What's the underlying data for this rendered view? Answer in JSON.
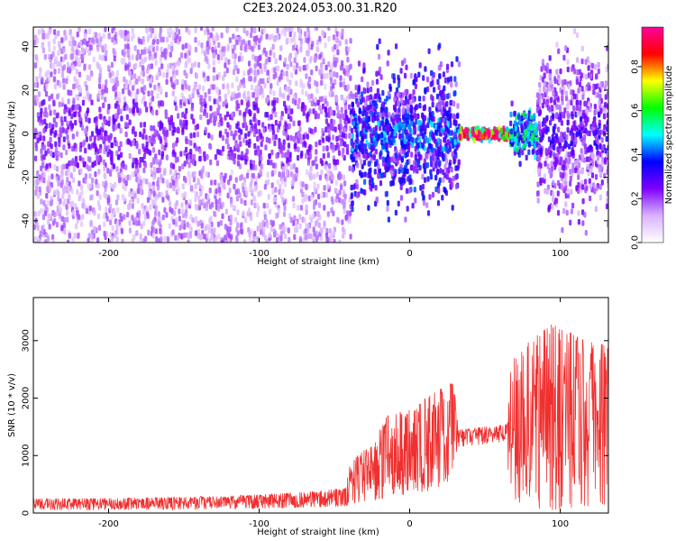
{
  "title": "C2E3.2024.053.00.31.R20",
  "chart_data": [
    {
      "type": "heatmap",
      "xlabel": "Height of straight line (km)",
      "ylabel": "Frequency (Hz)",
      "xlim": [
        -250,
        132
      ],
      "ylim": [
        -50,
        49
      ],
      "xticks": [
        -200,
        -100,
        0,
        100
      ],
      "yticks": [
        -40,
        -20,
        0,
        20,
        40
      ],
      "colorbar": {
        "label": "Normalized spectral amplitude",
        "range": [
          0,
          0.98
        ],
        "ticks": [
          "0.0",
          "0.2",
          "0.4",
          "0.6",
          "0.8"
        ],
        "colormap": [
          "#ffffff",
          "#d9b3ff",
          "#7f00ff",
          "#0000ff",
          "#00ffff",
          "#00ff00",
          "#ffff00",
          "#ff0000",
          "#ff00a0"
        ]
      },
      "regions": [
        {
          "x": [
            -250,
            -40
          ],
          "freq_spread_hz": 50,
          "amplitude": 0.15
        },
        {
          "x": [
            -40,
            32
          ],
          "freq_spread_hz": 25,
          "amplitude": 0.3
        },
        {
          "x": [
            32,
            66
          ],
          "freq_spread_hz": 2,
          "amplitude": 0.9
        },
        {
          "x": [
            66,
            84
          ],
          "freq_spread_hz": 8,
          "amplitude": 0.45
        },
        {
          "x": [
            84,
            132
          ],
          "freq_spread_hz": 30,
          "amplitude": 0.2
        }
      ]
    },
    {
      "type": "line",
      "xlabel": "Height of straight line (km)",
      "ylabel": "SNR (10 * v/v)",
      "xlim": [
        -250,
        132
      ],
      "ylim": [
        0,
        3750
      ],
      "xticks": [
        -200,
        -100,
        0,
        100
      ],
      "yticks": [
        0,
        1000,
        2000,
        3000
      ],
      "series_color": "#f03030",
      "envelope": [
        {
          "x": -250,
          "lo": 50,
          "hi": 250
        },
        {
          "x": -200,
          "lo": 50,
          "hi": 260
        },
        {
          "x": -150,
          "lo": 60,
          "hi": 280
        },
        {
          "x": -100,
          "lo": 80,
          "hi": 320
        },
        {
          "x": -60,
          "lo": 100,
          "hi": 380
        },
        {
          "x": -42,
          "lo": 120,
          "hi": 450
        },
        {
          "x": -40,
          "lo": 150,
          "hi": 900
        },
        {
          "x": -25,
          "lo": 200,
          "hi": 1200
        },
        {
          "x": -15,
          "lo": 250,
          "hi": 1700
        },
        {
          "x": 0,
          "lo": 300,
          "hi": 1800
        },
        {
          "x": 15,
          "lo": 400,
          "hi": 2100
        },
        {
          "x": 30,
          "lo": 600,
          "hi": 2300
        },
        {
          "x": 32,
          "lo": 1150,
          "hi": 1450
        },
        {
          "x": 50,
          "lo": 1200,
          "hi": 1500
        },
        {
          "x": 65,
          "lo": 1250,
          "hi": 1550
        },
        {
          "x": 66,
          "lo": 50,
          "hi": 2600
        },
        {
          "x": 80,
          "lo": 50,
          "hi": 3000
        },
        {
          "x": 95,
          "lo": 50,
          "hi": 3300
        },
        {
          "x": 110,
          "lo": 100,
          "hi": 3100
        },
        {
          "x": 132,
          "lo": 150,
          "hi": 2900
        }
      ]
    }
  ]
}
